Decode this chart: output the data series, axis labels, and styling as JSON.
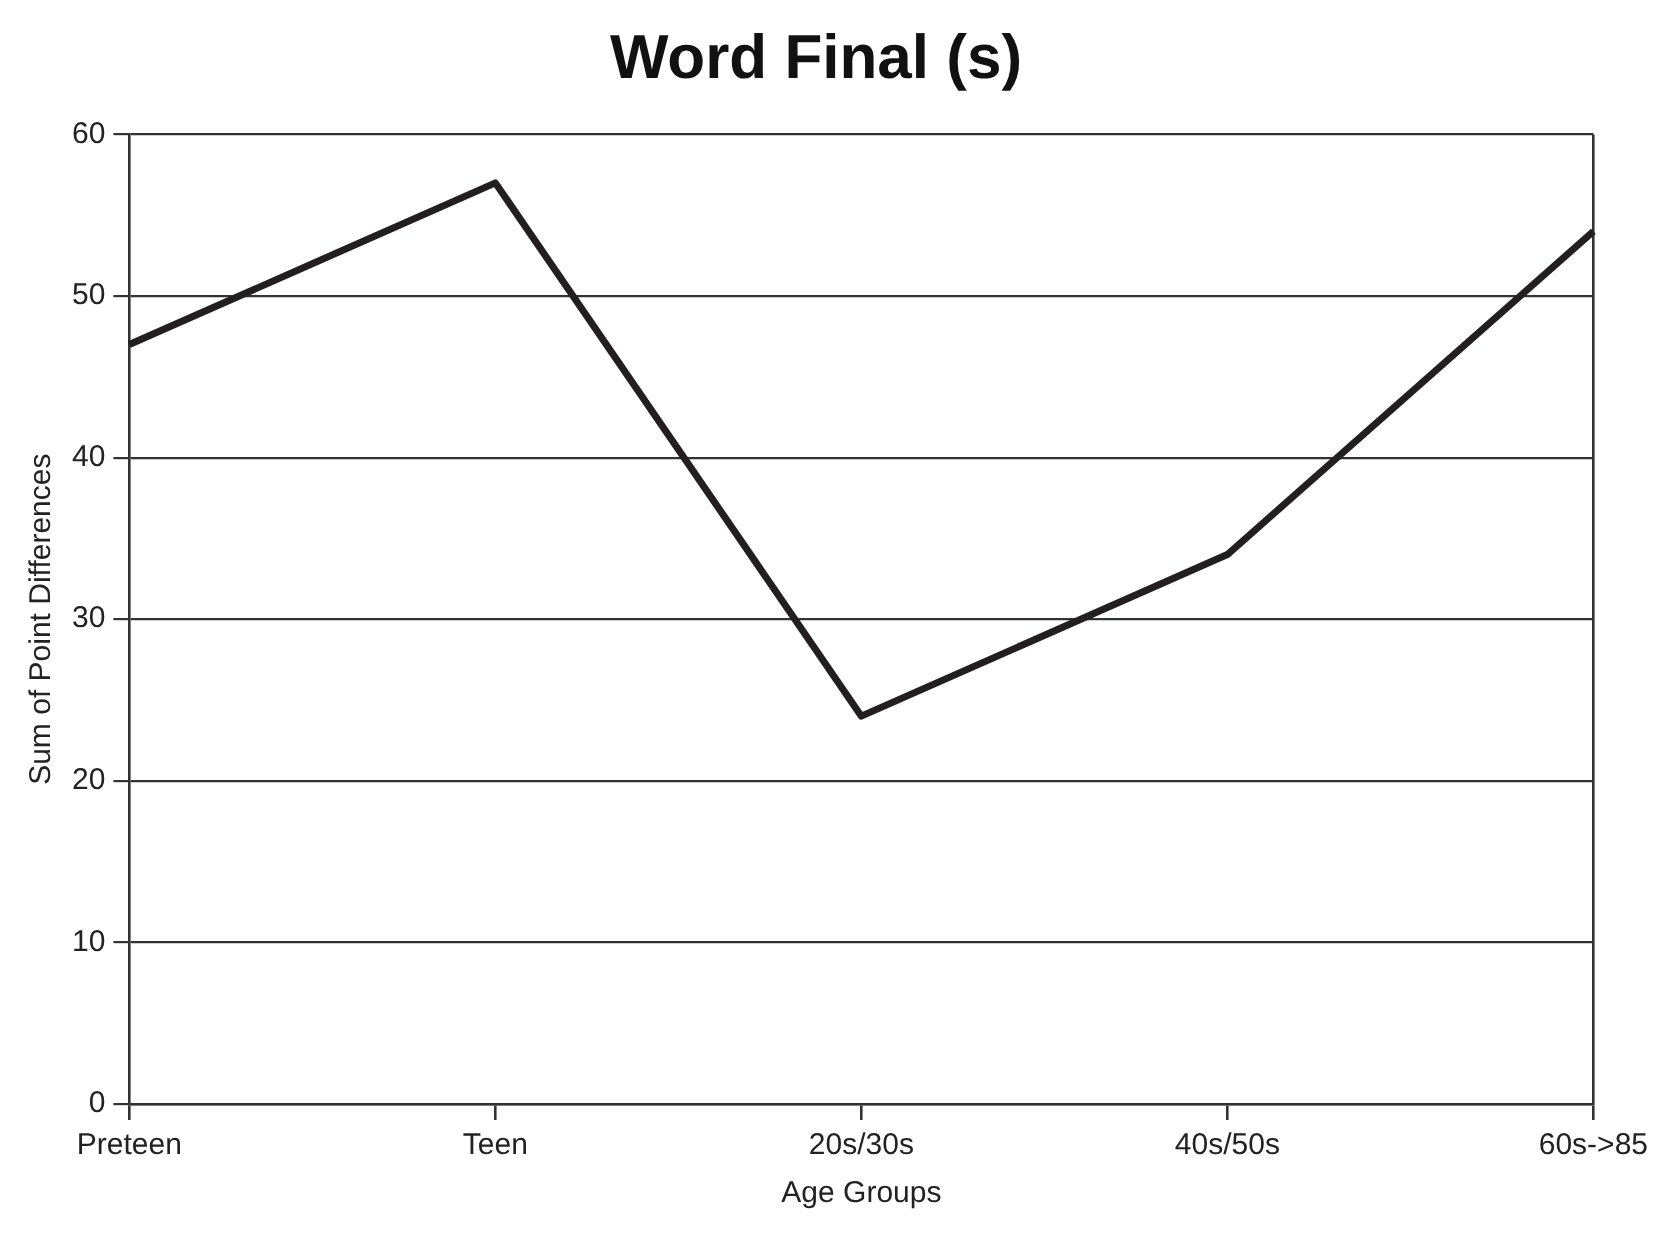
{
  "chart_data": {
    "type": "line",
    "title": "Word Final (s)",
    "xlabel": "Age Groups",
    "ylabel": "Sum of Point Differences",
    "categories": [
      "Preteen",
      "Teen",
      "20s/30s",
      "40s/50s",
      "60s->85"
    ],
    "series": [
      {
        "color": "#231f20",
        "values": [
          47,
          57,
          24,
          34,
          54
        ]
      }
    ],
    "ylim": [
      0,
      60
    ],
    "yticks": [
      0,
      10,
      20,
      30,
      40,
      50,
      60
    ],
    "grid": "y",
    "legend": false,
    "marker": "none",
    "line_style": "solid"
  }
}
